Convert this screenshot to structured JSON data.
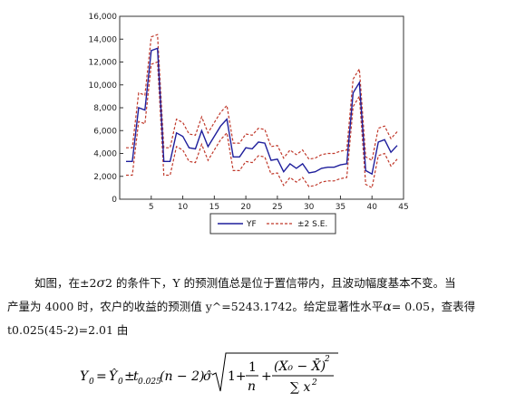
{
  "chart_data": {
    "type": "line",
    "x_ticks": [
      5,
      10,
      15,
      20,
      25,
      30,
      35,
      40,
      45
    ],
    "y_tick_labels": [
      "0",
      "2,000",
      "4,000",
      "6,000",
      "8,000",
      "10,000",
      "12,000",
      "14,000",
      "16,000"
    ],
    "y_ticks": [
      0,
      2000,
      4000,
      6000,
      8000,
      10000,
      12000,
      14000,
      16000
    ],
    "xlim": [
      0,
      45
    ],
    "ylim": [
      0,
      16000
    ],
    "series": [
      {
        "name": "YF",
        "color": "#1f1f9c",
        "style": "solid",
        "values": [
          3300,
          3300,
          8000,
          7800,
          13000,
          13200,
          3300,
          3300,
          5800,
          5500,
          4500,
          4400,
          6000,
          4600,
          5500,
          6400,
          7000,
          3700,
          3700,
          4500,
          4400,
          5000,
          4900,
          3400,
          3500,
          2400,
          3100,
          2700,
          3100,
          2300,
          2400,
          2700,
          2800,
          2800,
          3000,
          3100,
          9300,
          10200,
          2500,
          2200,
          5000,
          5200,
          4100,
          4700
        ]
      },
      {
        "name": "±2 S.E.",
        "color": "#c0392b",
        "style": "dashed",
        "upper": [
          4500,
          4500,
          9300,
          9100,
          14200,
          14400,
          4500,
          4500,
          7000,
          6700,
          5700,
          5600,
          7200,
          5800,
          6700,
          7600,
          8200,
          4900,
          4900,
          5700,
          5600,
          6200,
          6100,
          4600,
          4700,
          3600,
          4300,
          3900,
          4300,
          3500,
          3600,
          3900,
          4000,
          4000,
          4200,
          4300,
          10500,
          11400,
          3700,
          3400,
          6200,
          6400,
          5300,
          5900
        ],
        "lower": [
          2100,
          2100,
          6800,
          6600,
          11800,
          12000,
          2100,
          2100,
          4600,
          4300,
          3300,
          3200,
          4800,
          3400,
          4300,
          5200,
          5800,
          2500,
          2500,
          3300,
          3200,
          3800,
          3700,
          2200,
          2300,
          1200,
          1900,
          1500,
          1900,
          1100,
          1200,
          1500,
          1600,
          1600,
          1800,
          1900,
          8100,
          9000,
          1300,
          1000,
          3800,
          4000,
          2900,
          3500
        ]
      }
    ],
    "legend": [
      "YF",
      "±2 S.E."
    ],
    "legend_position": "bottom-center"
  },
  "text": {
    "p1": "如图，在±2",
    "p1_sigma": "σ",
    "p1_b": "2 的条件下，Y 的预测值总是位于置信带内，且波动幅度基本不变。当",
    "p2": "产量为 4000 时，农户的收益的预测值 y^=5243.1742。给定显著性水平",
    "p2_alpha": "α",
    "p2_b": "= 0.05，查表得",
    "p3": "t0.025(45-2)=2.01 由"
  },
  "formula": {
    "lhs": "Y",
    "lhs_sub": "0",
    "eq": "=",
    "yhat": "Ŷ",
    "yhat_sub": "0",
    "pm": "±",
    "t": "t",
    "t_sub": "0.025",
    "df": "(n − 2)",
    "sigma": "σ̂",
    "one_plus": "1+",
    "frac1_num": "1",
    "frac1_den": "n",
    "plus": "+",
    "frac2_num": "(X₀ − X̄)",
    "frac2_num_exp": "2",
    "frac2_den": "∑ x",
    "frac2_den_exp": "2"
  }
}
